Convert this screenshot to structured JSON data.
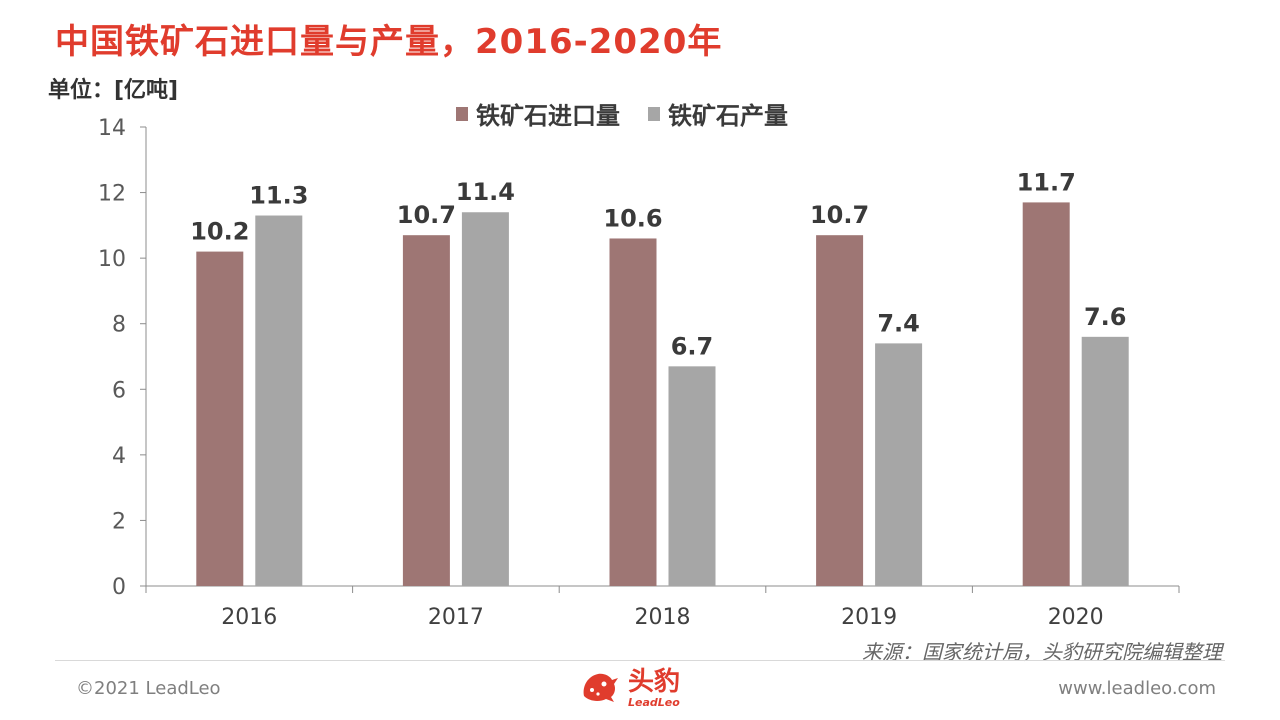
{
  "title": "中国铁矿石进口量与产量，2016-2020年",
  "unit_label": "单位：[亿吨]",
  "source": "来源：国家统计局，头豹研究院编辑整理",
  "footer": {
    "copyright": "©2021 LeadLeo",
    "website": "www.leadleo.com",
    "logo_cn": "头豹",
    "logo_en": "LeadLeo"
  },
  "chart_data": {
    "type": "bar",
    "categories": [
      "2016",
      "2017",
      "2018",
      "2019",
      "2020"
    ],
    "series": [
      {
        "name": "铁矿石进口量",
        "values": [
          10.2,
          10.7,
          10.6,
          10.7,
          11.7
        ],
        "color": "#9e7674"
      },
      {
        "name": "铁矿石产量",
        "values": [
          11.3,
          11.4,
          6.7,
          7.4,
          7.6
        ],
        "color": "#a6a6a6"
      }
    ],
    "ylim": [
      0,
      14
    ],
    "yticks": [
      0,
      2,
      4,
      6,
      8,
      10,
      12,
      14
    ],
    "legend_position": "top",
    "grid": false
  }
}
